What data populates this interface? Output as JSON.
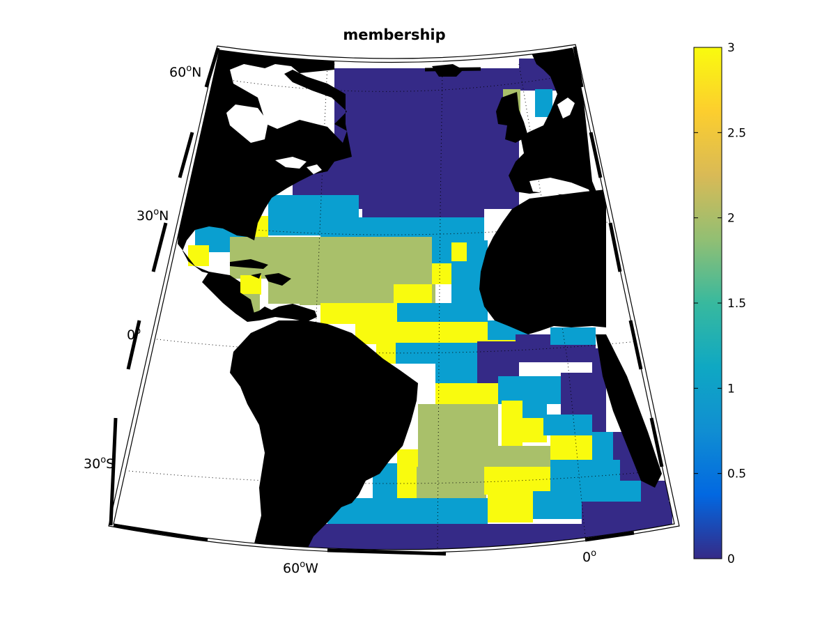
{
  "title": "membership",
  "map": {
    "projection": "conic",
    "coast_color": "#000000",
    "graticule": "dotted",
    "lat_labels": [
      {
        "deg": "60",
        "sup": "o",
        "hem": "N"
      },
      {
        "deg": "30",
        "sup": "o",
        "hem": "N"
      },
      {
        "deg": "0",
        "sup": "o",
        "hem": ""
      },
      {
        "deg": "30",
        "sup": "o",
        "hem": "S"
      }
    ],
    "lon_labels": [
      {
        "deg": "60",
        "sup": "o",
        "hem": "W"
      },
      {
        "deg": "0",
        "sup": "o",
        "hem": ""
      }
    ]
  },
  "colorbar": {
    "range": [
      0,
      3
    ],
    "ticks": [
      "0",
      "0.5",
      "1",
      "1.5",
      "2",
      "2.5",
      "3"
    ],
    "colormap": [
      "#352a87",
      "#0268e1",
      "#108ed2",
      "#0fa8c3",
      "#38b99e",
      "#92bf73",
      "#d9ba56",
      "#fcce2e",
      "#f9fb0e"
    ]
  },
  "class_colors": {
    "0": "#352a87",
    "1": "#0a9fd0",
    "2": "#a9c06a",
    "3": "#f9fb0e"
  }
}
